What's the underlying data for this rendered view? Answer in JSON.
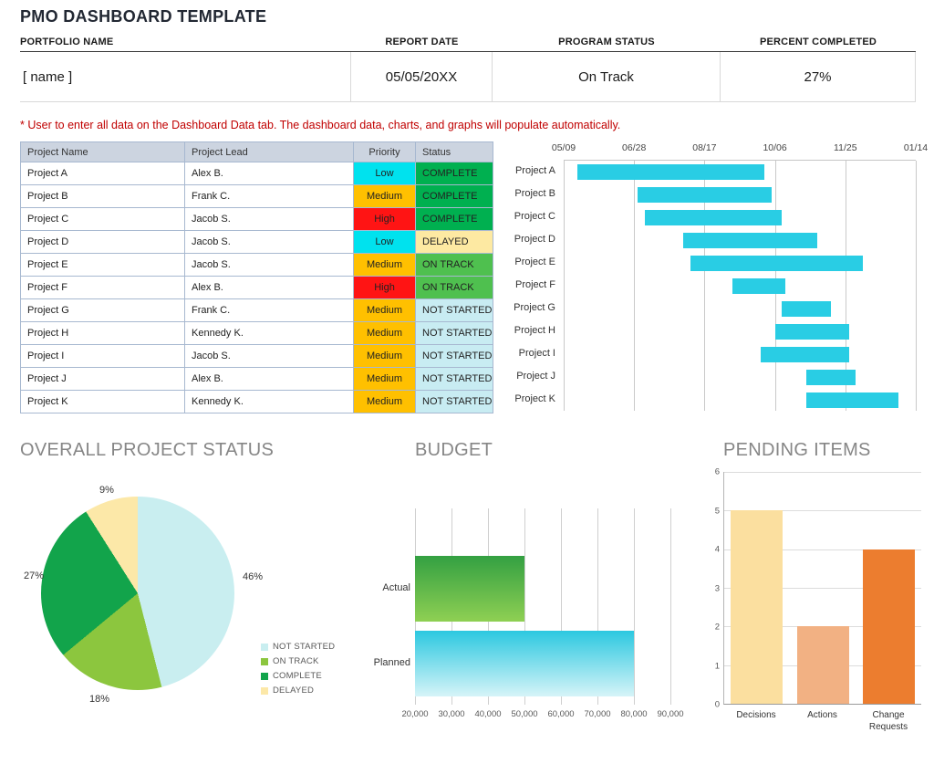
{
  "header": {
    "title": "PMO DASHBOARD TEMPLATE",
    "fields": [
      {
        "label": "PORTFOLIO NAME",
        "value": "[ name ]"
      },
      {
        "label": "REPORT DATE",
        "value": "05/05/20XX"
      },
      {
        "label": "PROGRAM STATUS",
        "value": "On Track"
      },
      {
        "label": "PERCENT COMPLETED",
        "value": "27%"
      }
    ],
    "note": "* User to enter all data on the Dashboard Data tab.  The dashboard data, charts, and graphs will populate automatically."
  },
  "project_table": {
    "columns": [
      "Project Name",
      "Project Lead",
      "Priority",
      "Status"
    ],
    "rows": [
      {
        "name": "Project A",
        "lead": "Alex B.",
        "priority": "Low",
        "status": "COMPLETE"
      },
      {
        "name": "Project B",
        "lead": "Frank C.",
        "priority": "Medium",
        "status": "COMPLETE"
      },
      {
        "name": "Project C",
        "lead": "Jacob S.",
        "priority": "High",
        "status": "COMPLETE"
      },
      {
        "name": "Project D",
        "lead": "Jacob S.",
        "priority": "Low",
        "status": "DELAYED"
      },
      {
        "name": "Project E",
        "lead": "Jacob S.",
        "priority": "Medium",
        "status": "ON TRACK"
      },
      {
        "name": "Project F",
        "lead": "Alex B.",
        "priority": "High",
        "status": "ON TRACK"
      },
      {
        "name": "Project G",
        "lead": "Frank C.",
        "priority": "Medium",
        "status": "NOT STARTED"
      },
      {
        "name": "Project H",
        "lead": "Kennedy K.",
        "priority": "Medium",
        "status": "NOT STARTED"
      },
      {
        "name": "Project I",
        "lead": "Jacob S.",
        "priority": "Medium",
        "status": "NOT STARTED"
      },
      {
        "name": "Project J",
        "lead": "Alex B.",
        "priority": "Medium",
        "status": "NOT STARTED"
      },
      {
        "name": "Project K",
        "lead": "Kennedy K.",
        "priority": "Medium",
        "status": "NOT STARTED"
      }
    ],
    "priority_colors": {
      "Low": "#00e2ee",
      "Medium": "#ffc000",
      "High": "#ff1414"
    },
    "status_colors": {
      "COMPLETE": "#00b050",
      "ON TRACK": "#4fc04f",
      "DELAYED": "#fde9a2",
      "NOT STARTED": "#c8ecf2"
    }
  },
  "chart_data": [
    {
      "type": "gantt",
      "title": "",
      "x_ticks": [
        "05/09",
        "06/28",
        "08/17",
        "10/06",
        "11/25",
        "01/14"
      ],
      "bar_color": "#29cde4",
      "rows": [
        {
          "label": "Project A",
          "start_pct": 4,
          "end_pct": 57
        },
        {
          "label": "Project B",
          "start_pct": 21,
          "end_pct": 59
        },
        {
          "label": "Project C",
          "start_pct": 23,
          "end_pct": 62
        },
        {
          "label": "Project D",
          "start_pct": 34,
          "end_pct": 72
        },
        {
          "label": "Project E",
          "start_pct": 36,
          "end_pct": 85
        },
        {
          "label": "Project F",
          "start_pct": 48,
          "end_pct": 63
        },
        {
          "label": "Project G",
          "start_pct": 62,
          "end_pct": 76
        },
        {
          "label": "Project H",
          "start_pct": 60,
          "end_pct": 81
        },
        {
          "label": "Project I",
          "start_pct": 56,
          "end_pct": 81
        },
        {
          "label": "Project J",
          "start_pct": 69,
          "end_pct": 83
        },
        {
          "label": "Project K",
          "start_pct": 69,
          "end_pct": 95
        }
      ]
    },
    {
      "type": "pie",
      "title": "OVERALL PROJECT STATUS",
      "start_angle_deg": 0,
      "direction": "clockwise",
      "legend_position": "right",
      "slices": [
        {
          "label": "NOT STARTED",
          "value": 46,
          "pct_label": "46%",
          "color": "#c9eef0"
        },
        {
          "label": "ON TRACK",
          "value": 18,
          "pct_label": "18%",
          "color": "#8cc63e"
        },
        {
          "label": "COMPLETE",
          "value": 27,
          "pct_label": "27%",
          "color": "#12a44b"
        },
        {
          "label": "DELAYED",
          "value": 9,
          "pct_label": "9%",
          "color": "#fce8a8"
        }
      ]
    },
    {
      "type": "bar",
      "orientation": "horizontal",
      "title": "BUDGET",
      "categories": [
        "Actual",
        "Planned"
      ],
      "values": [
        50000,
        80000
      ],
      "xlim": [
        20000,
        90000
      ],
      "x_ticks": [
        "20,000",
        "30,000",
        "40,000",
        "50,000",
        "60,000",
        "70,000",
        "80,000",
        "90,000"
      ],
      "grid": true,
      "bar_gradients": [
        [
          "#33a042",
          "#8fd053"
        ],
        [
          "#2cc8e0",
          "#d6f4f8"
        ]
      ]
    },
    {
      "type": "bar",
      "orientation": "vertical",
      "title": "PENDING ITEMS",
      "categories": [
        "Decisions",
        "Actions",
        "Change Requests"
      ],
      "values": [
        5,
        2,
        4
      ],
      "ylim": [
        0,
        6
      ],
      "y_ticks": [
        "0",
        "1",
        "2",
        "3",
        "4",
        "5",
        "6"
      ],
      "grid": true,
      "bar_colors": [
        "#fbdf9f",
        "#f2b183",
        "#ec7d2f"
      ]
    }
  ]
}
